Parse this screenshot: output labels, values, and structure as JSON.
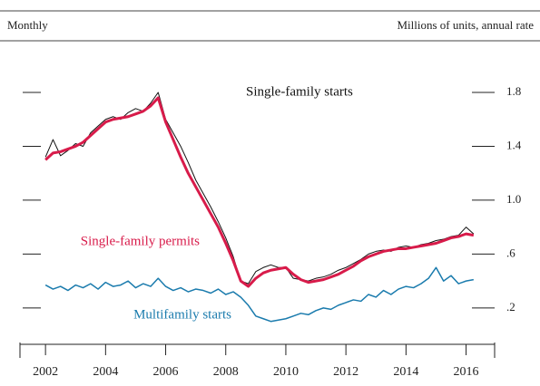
{
  "chart_data": {
    "type": "line",
    "subtitle_left": "Monthly",
    "subtitle_right": "Millions of units, annual rate",
    "annotations": [
      {
        "text": "Single-family starts",
        "series": 0
      },
      {
        "text": "Single-family permits",
        "series": 1
      },
      {
        "text": "Multifamily starts",
        "series": 2
      }
    ],
    "x": [
      2002,
      2002.25,
      2002.5,
      2002.75,
      2003,
      2003.25,
      2003.5,
      2003.75,
      2004,
      2004.25,
      2004.5,
      2004.75,
      2005,
      2005.25,
      2005.5,
      2005.75,
      2006,
      2006.25,
      2006.5,
      2006.75,
      2007,
      2007.25,
      2007.5,
      2007.75,
      2008,
      2008.25,
      2008.5,
      2008.75,
      2009,
      2009.25,
      2009.5,
      2009.75,
      2010,
      2010.25,
      2010.5,
      2010.75,
      2011,
      2011.25,
      2011.5,
      2011.75,
      2012,
      2012.25,
      2012.5,
      2012.75,
      2013,
      2013.25,
      2013.5,
      2013.75,
      2014,
      2014.25,
      2014.5,
      2014.75,
      2015,
      2015.25,
      2015.5,
      2015.75,
      2016,
      2016.25
    ],
    "series": [
      {
        "name": "Single-family starts",
        "color": "#111111",
        "width": 1,
        "values": [
          1.32,
          1.45,
          1.33,
          1.37,
          1.42,
          1.4,
          1.5,
          1.55,
          1.6,
          1.62,
          1.6,
          1.65,
          1.68,
          1.66,
          1.72,
          1.8,
          1.6,
          1.5,
          1.4,
          1.28,
          1.15,
          1.05,
          0.95,
          0.84,
          0.72,
          0.58,
          0.4,
          0.38,
          0.47,
          0.5,
          0.52,
          0.5,
          0.5,
          0.42,
          0.41,
          0.4,
          0.42,
          0.43,
          0.45,
          0.48,
          0.5,
          0.53,
          0.56,
          0.6,
          0.62,
          0.63,
          0.62,
          0.65,
          0.66,
          0.65,
          0.67,
          0.68,
          0.7,
          0.71,
          0.73,
          0.74,
          0.8,
          0.75
        ]
      },
      {
        "name": "Single-family permits",
        "color": "#d81b4a",
        "width": 3,
        "values": [
          1.3,
          1.35,
          1.36,
          1.38,
          1.4,
          1.43,
          1.48,
          1.53,
          1.58,
          1.6,
          1.61,
          1.62,
          1.64,
          1.66,
          1.7,
          1.76,
          1.58,
          1.45,
          1.32,
          1.2,
          1.1,
          1.0,
          0.9,
          0.8,
          0.68,
          0.55,
          0.4,
          0.36,
          0.42,
          0.46,
          0.48,
          0.49,
          0.5,
          0.45,
          0.41,
          0.39,
          0.4,
          0.41,
          0.43,
          0.45,
          0.48,
          0.51,
          0.55,
          0.58,
          0.6,
          0.62,
          0.63,
          0.64,
          0.64,
          0.65,
          0.66,
          0.67,
          0.68,
          0.7,
          0.72,
          0.73,
          0.75,
          0.74
        ]
      },
      {
        "name": "Multifamily starts",
        "color": "#1a7bad",
        "width": 1.5,
        "values": [
          0.37,
          0.34,
          0.36,
          0.33,
          0.37,
          0.35,
          0.38,
          0.34,
          0.39,
          0.36,
          0.37,
          0.4,
          0.35,
          0.38,
          0.36,
          0.42,
          0.36,
          0.33,
          0.35,
          0.32,
          0.34,
          0.33,
          0.31,
          0.34,
          0.3,
          0.32,
          0.28,
          0.22,
          0.14,
          0.12,
          0.1,
          0.11,
          0.12,
          0.14,
          0.16,
          0.15,
          0.18,
          0.2,
          0.19,
          0.22,
          0.24,
          0.26,
          0.25,
          0.3,
          0.28,
          0.33,
          0.3,
          0.34,
          0.36,
          0.35,
          0.38,
          0.42,
          0.5,
          0.4,
          0.44,
          0.38,
          0.4,
          0.41
        ]
      }
    ],
    "xlim": [
      2001.15,
      2016.95
    ],
    "xticks": [
      2002,
      2004,
      2006,
      2008,
      2010,
      2012,
      2014,
      2016
    ],
    "ylim": [
      -0.07,
      2.02
    ],
    "yticks": [
      {
        "value": 0.2,
        "label": ".2"
      },
      {
        "value": 0.6,
        "label": ".6"
      },
      {
        "value": 1.0,
        "label": "1.0"
      },
      1.4,
      1.8
    ]
  }
}
